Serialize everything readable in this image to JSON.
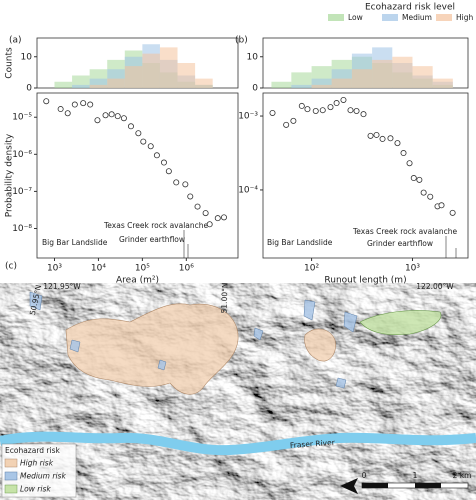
{
  "chart_data": [
    {
      "type": "histogram",
      "label": "(a)",
      "ylabel": "Counts",
      "legend_title": "Ecohazard risk level",
      "log_x": true,
      "xlim": [
        400,
        15000000
      ],
      "ylim": [
        0,
        16
      ],
      "yticks": [
        0,
        10
      ],
      "bins": [
        1000,
        2512,
        6310,
        15850,
        39810,
        100000,
        251200,
        631000,
        1585000,
        3981000
      ],
      "series": [
        {
          "name": "Low",
          "color": "#a8d99a",
          "values": [
            2,
            4,
            6,
            9,
            12,
            8,
            5,
            2,
            1
          ]
        },
        {
          "name": "Medium",
          "color": "#9fc3e6",
          "values": [
            0,
            1,
            3,
            6,
            10,
            14,
            9,
            4,
            1
          ]
        },
        {
          "name": "High",
          "color": "#f4c29c",
          "values": [
            0,
            0,
            1,
            3,
            7,
            11,
            13,
            8,
            3
          ]
        }
      ]
    },
    {
      "type": "scatter",
      "ylabel": "Probability density",
      "xlabel": "Area (m²)",
      "log_x": true,
      "log_y": true,
      "xlim": [
        400,
        15000000
      ],
      "ylim": [
        1.6e-09,
        4.5e-05
      ],
      "xticks": [
        {
          "value": 1000,
          "label": "10³"
        },
        {
          "value": 10000,
          "label": "10⁴"
        },
        {
          "value": 100000,
          "label": "10⁵"
        },
        {
          "value": 1000000,
          "label": "10⁶"
        }
      ],
      "yticks": [
        {
          "value": 1e-08,
          "label": "10⁻⁸"
        },
        {
          "value": 1e-07,
          "label": "10⁻⁷"
        },
        {
          "value": 1e-06,
          "label": "10⁻⁶"
        },
        {
          "value": 1e-05,
          "label": "10⁻⁵"
        }
      ],
      "x": [
        650,
        1380,
        2000,
        2900,
        4500,
        6500,
        9500,
        14500,
        20000,
        27500,
        38000,
        55000,
        81000,
        105000,
        155000,
        214000,
        310000,
        400000,
        590000,
        950000,
        1230000,
        1800000,
        2750000,
        3400000,
        5200000,
        7200000
      ],
      "values": [
        2.7e-05,
        1.66e-05,
        1.28e-05,
        2.2e-05,
        2.4e-05,
        2.2e-05,
        8.3e-06,
        1.13e-05,
        1.2e-05,
        1.07e-05,
        9.4e-06,
        5.7e-06,
        3.7e-06,
        2.2e-06,
        1.65e-06,
        9.4e-07,
        6e-07,
        3.5e-07,
        1.75e-07,
        1.55e-07,
        7.3e-08,
        3.9e-08,
        2.6e-08,
        1.3e-08,
        1.9e-08,
        2e-08
      ],
      "annotations": [
        "Big Bar Landslide",
        "Texas Creek rock avalanche",
        "Grinder earthflow"
      ]
    },
    {
      "type": "histogram",
      "label": "(b)",
      "log_x": true,
      "xlim": [
        33,
        3550
      ],
      "ylim": [
        0,
        16
      ],
      "yticks": [
        0,
        10
      ],
      "bins": [
        40,
        63,
        100,
        158,
        251,
        398,
        631,
        1000,
        1585,
        2512
      ],
      "series": [
        {
          "name": "Low",
          "color": "#a8d99a",
          "values": [
            2,
            5,
            7,
            9,
            10,
            8,
            5,
            3,
            1
          ]
        },
        {
          "name": "Medium",
          "color": "#9fc3e6",
          "values": [
            0,
            1,
            3,
            6,
            11,
            13,
            8,
            4,
            2
          ]
        },
        {
          "name": "High",
          "color": "#f4c29c",
          "values": [
            0,
            0,
            1,
            3,
            6,
            9,
            10,
            7,
            3
          ]
        }
      ]
    },
    {
      "type": "scatter",
      "xlabel": "Runout length (m)",
      "log_x": true,
      "log_y": true,
      "xlim": [
        33,
        3550
      ],
      "ylim": [
        1.2e-05,
        0.00205
      ],
      "xticks": [
        {
          "value": 100,
          "label": "10²"
        },
        {
          "value": 1000,
          "label": "10³"
        }
      ],
      "yticks": [
        {
          "value": 0.0001,
          "label": "10⁻⁴"
        },
        {
          "value": 0.001,
          "label": "10⁻³"
        }
      ],
      "x": [
        41,
        56,
        66,
        80,
        91,
        110,
        129,
        154,
        177,
        207,
        243,
        279,
        327,
        384,
        440,
        505,
        605,
        710,
        815,
        935,
        1030,
        1170,
        1290,
        1500,
        1770,
        1940,
        2500
      ],
      "values": [
        0.0011,
        0.00076,
        0.00086,
        0.00137,
        0.00124,
        0.00117,
        0.0012,
        0.00132,
        0.0015,
        0.00165,
        0.0012,
        0.00117,
        0.00106,
        0.00054,
        0.000555,
        0.00049,
        0.0005,
        0.00043,
        0.000316,
        0.00023,
        0.000145,
        0.000137,
        9.2e-05,
        8.1e-05,
        6e-05,
        6.2e-05,
        4.9e-05
      ],
      "annotations": [
        "Big Bar Landslide",
        "Texas Creek rock avalanche",
        "Grinder earthflow"
      ]
    }
  ],
  "map": {
    "label": "(c)",
    "coords": [
      "50.95°N",
      "121.95°W",
      "51.00°N",
      "122.00°W"
    ],
    "river": "Fraser River",
    "legend": {
      "title": "Ecohazard risk",
      "items": [
        "High risk",
        "Medium risk",
        "Low risk"
      ]
    },
    "scale": [
      "0",
      "1",
      "2 km"
    ]
  }
}
